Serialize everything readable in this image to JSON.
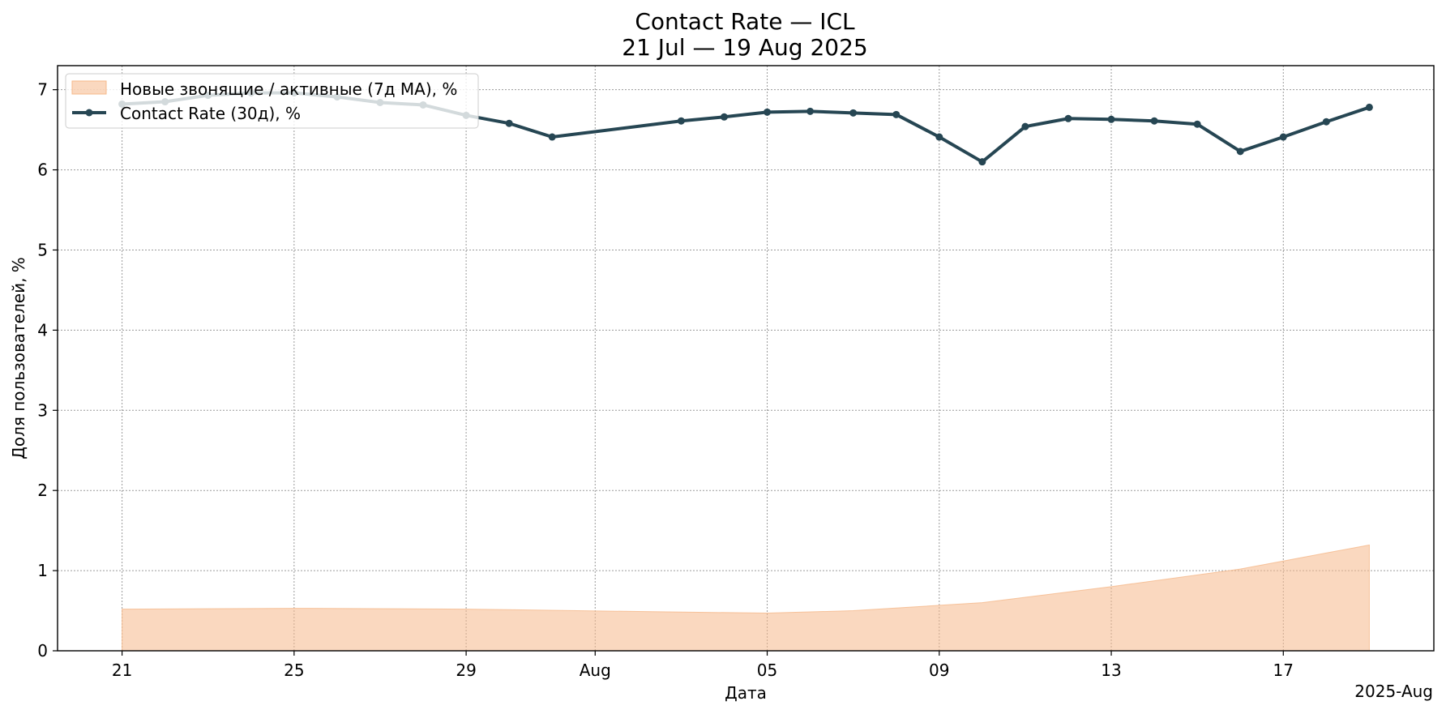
{
  "chart_data": {
    "type": "line",
    "title_line1": "Contact Rate — ICL",
    "title_line2": "21 Jul — 19 Aug 2025",
    "xlabel": "Дата",
    "ylabel": "Доля пользователей, %",
    "x_offset_label": "2025-Aug",
    "ylim": [
      0,
      7.3
    ],
    "xlim": [
      "2025-07-19 12:00",
      "2025-08-20 12:00"
    ],
    "grid": true,
    "legend_position": "upper-left",
    "x_ticks": [
      {
        "date": "2025-07-21",
        "label": "21"
      },
      {
        "date": "2025-07-25",
        "label": "25"
      },
      {
        "date": "2025-07-29",
        "label": "29"
      },
      {
        "date": "2025-08-01",
        "label": "Aug"
      },
      {
        "date": "2025-08-05",
        "label": "05"
      },
      {
        "date": "2025-08-09",
        "label": "09"
      },
      {
        "date": "2025-08-13",
        "label": "13"
      },
      {
        "date": "2025-08-17",
        "label": "17"
      }
    ],
    "y_ticks": [
      0,
      1,
      2,
      3,
      4,
      5,
      6,
      7
    ],
    "series": [
      {
        "name": "Новые звонящие / активные (7д MA), %",
        "kind": "area",
        "color": "#f5b88a",
        "points": [
          {
            "x": "2025-07-21",
            "y": 0.52
          },
          {
            "x": "2025-07-25",
            "y": 0.53
          },
          {
            "x": "2025-07-29",
            "y": 0.52
          },
          {
            "x": "2025-08-02",
            "y": 0.49
          },
          {
            "x": "2025-08-05",
            "y": 0.47
          },
          {
            "x": "2025-08-07",
            "y": 0.5
          },
          {
            "x": "2025-08-10",
            "y": 0.6
          },
          {
            "x": "2025-08-13",
            "y": 0.8
          },
          {
            "x": "2025-08-16",
            "y": 1.02
          },
          {
            "x": "2025-08-17",
            "y": 1.12
          },
          {
            "x": "2025-08-19",
            "y": 1.32
          }
        ]
      },
      {
        "name": "Contact Rate (30д), %",
        "kind": "line",
        "color": "#264653",
        "points": [
          {
            "x": "2025-07-21",
            "y": 6.82
          },
          {
            "x": "2025-07-22",
            "y": 6.85
          },
          {
            "x": "2025-07-23",
            "y": 6.93
          },
          {
            "x": "2025-07-24",
            "y": 6.96
          },
          {
            "x": "2025-07-25",
            "y": 6.96
          },
          {
            "x": "2025-07-26",
            "y": 6.91
          },
          {
            "x": "2025-07-27",
            "y": 6.84
          },
          {
            "x": "2025-07-28",
            "y": 6.81
          },
          {
            "x": "2025-07-29",
            "y": 6.68
          },
          {
            "x": "2025-07-30",
            "y": 6.58
          },
          {
            "x": "2025-07-31",
            "y": 6.41
          },
          {
            "x": "2025-08-03",
            "y": 6.61
          },
          {
            "x": "2025-08-04",
            "y": 6.66
          },
          {
            "x": "2025-08-05",
            "y": 6.72
          },
          {
            "x": "2025-08-06",
            "y": 6.73
          },
          {
            "x": "2025-08-07",
            "y": 6.71
          },
          {
            "x": "2025-08-08",
            "y": 6.69
          },
          {
            "x": "2025-08-09",
            "y": 6.41
          },
          {
            "x": "2025-08-10",
            "y": 6.1
          },
          {
            "x": "2025-08-11",
            "y": 6.54
          },
          {
            "x": "2025-08-12",
            "y": 6.64
          },
          {
            "x": "2025-08-13",
            "y": 6.63
          },
          {
            "x": "2025-08-14",
            "y": 6.61
          },
          {
            "x": "2025-08-15",
            "y": 6.57
          },
          {
            "x": "2025-08-16",
            "y": 6.23
          },
          {
            "x": "2025-08-17",
            "y": 6.41
          },
          {
            "x": "2025-08-18",
            "y": 6.6
          },
          {
            "x": "2025-08-19",
            "y": 6.78
          }
        ]
      }
    ]
  }
}
